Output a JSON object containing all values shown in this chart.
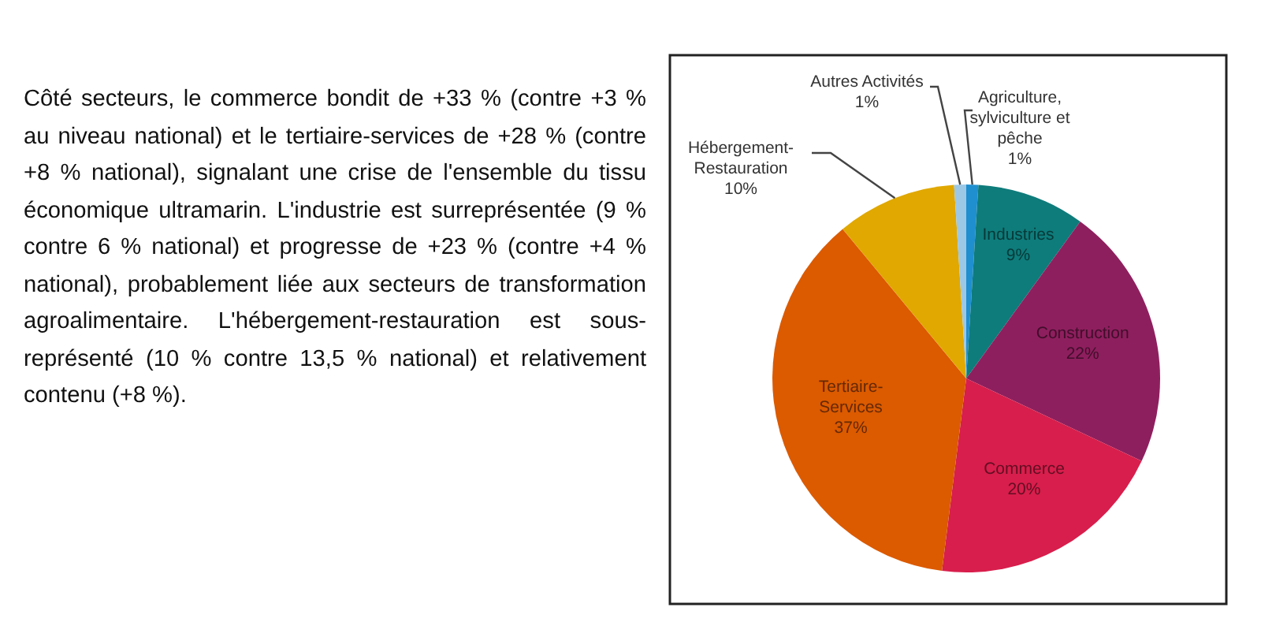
{
  "chart_data": {
    "type": "pie",
    "categories": [
      "Agriculture, sylviculture et pêche",
      "Industries",
      "Construction",
      "Commerce",
      "Tertiaire-Services",
      "Hébergement-Restauration",
      "Autres Activités"
    ],
    "values": [
      1,
      9,
      22,
      20,
      37,
      10,
      1
    ],
    "value_labels": [
      "1%",
      "9%",
      "22%",
      "20%",
      "37%",
      "10%",
      "1%"
    ],
    "colors": [
      "#1f8fd0",
      "#0e7c7b",
      "#8e1f5e",
      "#d81e4c",
      "#dc5a00",
      "#e0a800",
      "#9cc8e6"
    ],
    "annotations": [
      "Côté secteurs, le commerce bondit de +33 % (contre +3 % au niveau national) et le tertiaire-services de +28 % (contre +8 % national), signalant une crise de l'ensemble du tissu économique ultramarin. L'industrie est surreprésentée (9 % contre 6 % national) et progresse de +23 % (contre +4 % national), probablement liée aux secteurs de transformation agroalimentaire. L'hébergement-restauration est sous-représenté (10 % contre 13,5 % national) et relativement contenu (+8 %)."
    ],
    "legend": false
  }
}
